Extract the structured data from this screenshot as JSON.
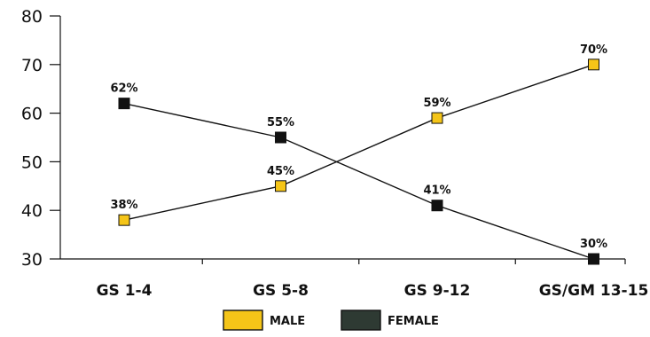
{
  "chart_data": {
    "type": "line",
    "title": "",
    "xlabel": "",
    "ylabel": "",
    "categories": [
      "GS 1-4",
      "GS 5-8",
      "GS 9-12",
      "GS/GM 13-15"
    ],
    "ylim": [
      30,
      80
    ],
    "yticks": [
      30,
      40,
      50,
      60,
      70,
      80
    ],
    "grid": false,
    "legend_position": "bottom-center",
    "series": [
      {
        "name": "MALE",
        "values": [
          38,
          45,
          59,
          70
        ],
        "labels": [
          "38%",
          "45%",
          "59%",
          "70%"
        ],
        "marker_color": "#F5C518"
      },
      {
        "name": "FEMALE",
        "values": [
          62,
          55,
          41,
          30
        ],
        "labels": [
          "62%",
          "55%",
          "41%",
          "30%"
        ],
        "marker_color": "#111111"
      }
    ]
  },
  "legend": {
    "items": [
      {
        "label": "MALE",
        "color": "#F5C518"
      },
      {
        "label": "FEMALE",
        "color": "#2E3A33"
      }
    ]
  }
}
